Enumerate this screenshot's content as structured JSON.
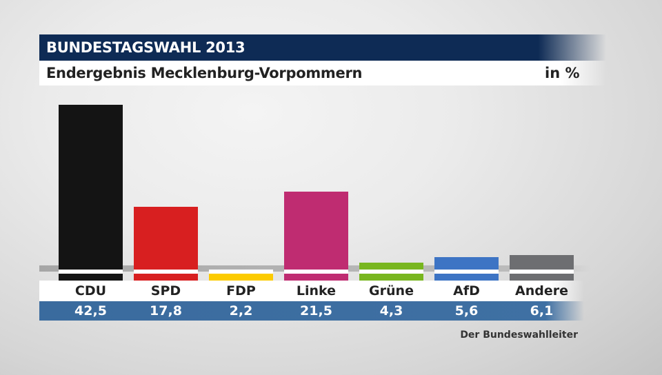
{
  "header": {
    "title": "BUNDESTAGSWAHL 2013",
    "subtitle": "Endergebnis Mecklenburg-Vorpommern",
    "unit": "in %"
  },
  "source": "Der Bundeswahlleiter",
  "colors": {
    "CDU": "#141414",
    "SPD": "#d81f20",
    "FDP": "#fccb00",
    "Linke": "#bf2c71",
    "Grüne": "#78b61f",
    "AfD": "#3d74c4",
    "Andere": "#6d6e71",
    "title_bg": "#0e2b55",
    "value_strip": "#3f70a3"
  },
  "chart_data": {
    "type": "bar",
    "title": "Endergebnis Mecklenburg-Vorpommern",
    "ylabel": "in %",
    "xlabel": "",
    "categories": [
      "CDU",
      "SPD",
      "FDP",
      "Linke",
      "Grüne",
      "AfD",
      "Andere"
    ],
    "values": [
      42.5,
      17.8,
      2.2,
      21.5,
      4.3,
      5.6,
      6.1
    ],
    "value_labels": [
      "42,5",
      "17,8",
      "2,2",
      "21,5",
      "4,3",
      "5,6",
      "6,1"
    ],
    "ylim": [
      0,
      42.5
    ],
    "grid": false,
    "legend": "none"
  }
}
